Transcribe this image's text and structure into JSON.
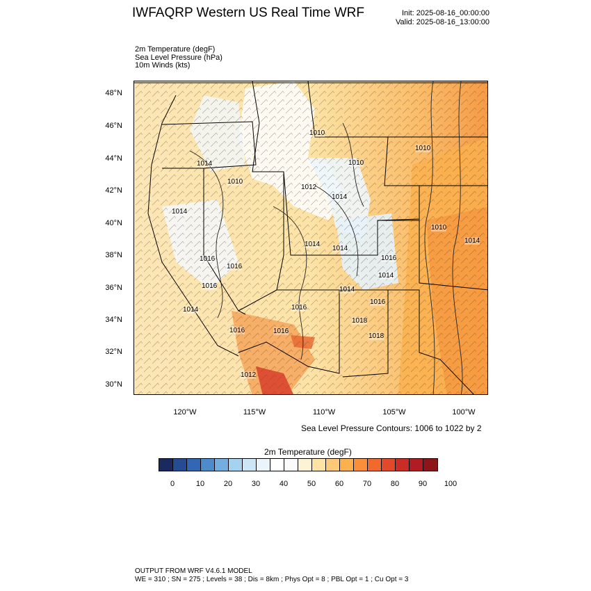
{
  "header": {
    "title": "IWFAQRP Western US Real Time WRF",
    "init": "Init: 2025-08-16_00:00:00",
    "valid": "Valid: 2025-08-16_13:00:00"
  },
  "fields": [
    "2m Temperature   (degF)",
    "Sea Level Pressure   (hPa)",
    "10m Winds   (kts)"
  ],
  "map": {
    "lat_labels": [
      "48°N",
      "46°N",
      "44°N",
      "42°N",
      "40°N",
      "38°N",
      "36°N",
      "34°N",
      "32°N",
      "30°N"
    ],
    "lon_labels": [
      "120°W",
      "115°W",
      "110°W",
      "105°W",
      "100°W"
    ],
    "pressure_labels": [
      "1010",
      "1010",
      "1010",
      "1014",
      "1010",
      "1012",
      "1014",
      "1014",
      "1010",
      "1014",
      "1014",
      "1014",
      "1016",
      "1016",
      "1014",
      "1016",
      "1016",
      "1014",
      "1016",
      "1014",
      "1016",
      "1018",
      "1018",
      "1016",
      "1012",
      "1016"
    ]
  },
  "contour_note": "Sea Level Pressure Contours: 1006 to 1022 by 2",
  "colorbar": {
    "title": "2m Temperature  (degF)",
    "labels": [
      "0",
      "10",
      "20",
      "30",
      "40",
      "50",
      "60",
      "70",
      "80",
      "90",
      "100"
    ],
    "colors": [
      "#1a2a5e",
      "#254b93",
      "#3467b3",
      "#4e8bcb",
      "#74aee0",
      "#a4d2ef",
      "#cde6f6",
      "#eaf5fb",
      "#ffffff",
      "#fbfbfb",
      "#fdf2d3",
      "#fde3a6",
      "#fdc978",
      "#fdb04e",
      "#f98f3a",
      "#f06a2e",
      "#e14a28",
      "#c92d26",
      "#b01c22",
      "#8c1519"
    ]
  },
  "footer": {
    "line1": "OUTPUT FROM WRF V4.6.1 MODEL",
    "line2": "WE = 310 ; SN = 275 ; Levels = 38 ; Dis = 8km ; Phys Opt = 8 ; PBL Opt = 1 ; Cu Opt = 3"
  }
}
